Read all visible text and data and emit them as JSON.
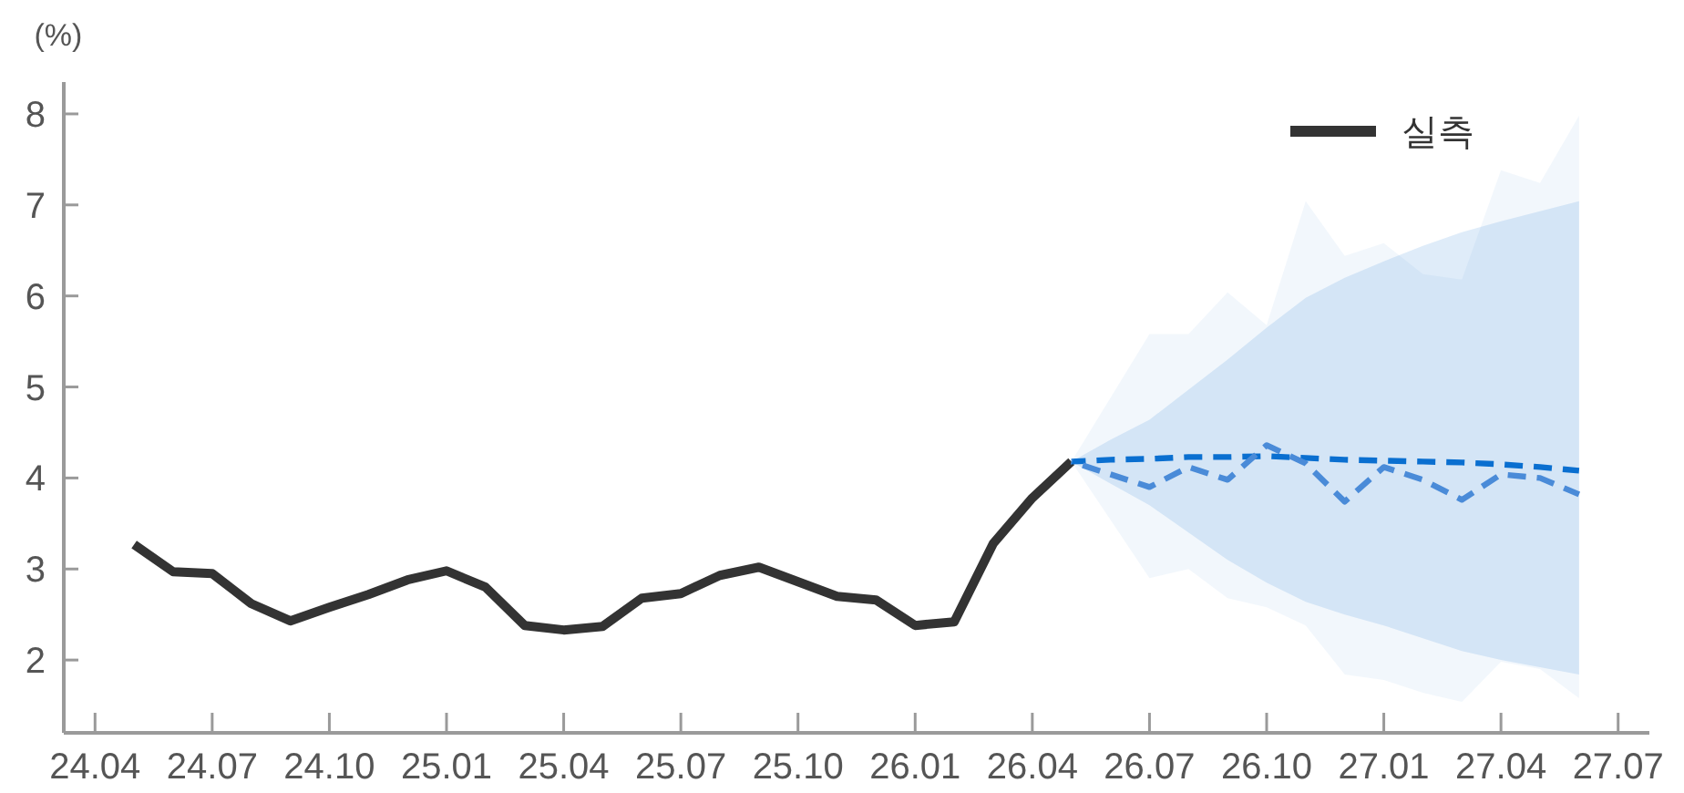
{
  "chart_data": {
    "type": "line",
    "ylabel": "(%)",
    "legend": "top right",
    "ylim": [
      1.2,
      8.35
    ],
    "yticks": [
      2,
      3,
      4,
      5,
      6,
      7,
      8
    ],
    "categories": [
      "24.04",
      null,
      null,
      "24.07",
      null,
      null,
      "24.10",
      null,
      null,
      "25.01",
      null,
      null,
      "25.04",
      null,
      null,
      "25.07",
      null,
      null,
      "25.10",
      null,
      null,
      "26.01",
      null,
      null,
      "26.04",
      null,
      null,
      "26.07",
      null,
      null,
      "26.10",
      null,
      null,
      "27.01",
      null,
      null,
      "27.04",
      null,
      null,
      "27.07"
    ],
    "series": [
      {
        "name": "실측",
        "color": "#333333",
        "line_style": "solid",
        "values": [
          null,
          3.27,
          2.97,
          2.95,
          2.62,
          2.43,
          2.58,
          2.72,
          2.88,
          2.98,
          2.8,
          2.38,
          2.33,
          2.37,
          2.68,
          2.73,
          2.93,
          3.02,
          2.86,
          2.7,
          2.66,
          2.38,
          2.42,
          3.28,
          3.78,
          4.18,
          null,
          null,
          null,
          null,
          null,
          null,
          null,
          null,
          null,
          null,
          null,
          null,
          null,
          null
        ]
      },
      {
        "color": "#0a6fd0",
        "line_style": "dashed",
        "values": [
          null,
          null,
          null,
          null,
          null,
          null,
          null,
          null,
          null,
          null,
          null,
          null,
          null,
          null,
          null,
          null,
          null,
          null,
          null,
          null,
          null,
          null,
          null,
          null,
          null,
          4.18,
          4.2,
          4.21,
          4.23,
          4.23,
          4.24,
          4.22,
          4.2,
          4.19,
          4.18,
          4.17,
          4.15,
          4.12,
          4.08,
          null
        ],
        "lower": [
          null,
          null,
          null,
          null,
          null,
          null,
          null,
          null,
          null,
          null,
          null,
          null,
          null,
          null,
          null,
          null,
          null,
          null,
          null,
          null,
          null,
          null,
          null,
          null,
          null,
          4.18,
          3.94,
          3.7,
          3.4,
          3.1,
          2.85,
          2.64,
          2.5,
          2.38,
          2.24,
          2.1,
          2.0,
          1.92,
          1.84,
          null
        ],
        "upper": [
          null,
          null,
          null,
          null,
          null,
          null,
          null,
          null,
          null,
          null,
          null,
          null,
          null,
          null,
          null,
          null,
          null,
          null,
          null,
          null,
          null,
          null,
          null,
          null,
          null,
          4.18,
          4.42,
          4.64,
          4.97,
          5.3,
          5.65,
          5.98,
          6.2,
          6.38,
          6.55,
          6.7,
          6.82,
          6.93,
          7.04,
          null
        ]
      },
      {
        "color": "#4a8bd8",
        "line_style": "dashed",
        "values": [
          null,
          null,
          null,
          null,
          null,
          null,
          null,
          null,
          null,
          null,
          null,
          null,
          null,
          null,
          null,
          null,
          null,
          null,
          null,
          null,
          null,
          null,
          null,
          null,
          null,
          4.18,
          4.04,
          3.9,
          4.12,
          3.98,
          4.36,
          4.16,
          3.74,
          4.12,
          3.98,
          3.76,
          4.04,
          4.0,
          3.82,
          null
        ],
        "lower": [
          null,
          null,
          null,
          null,
          null,
          null,
          null,
          null,
          null,
          null,
          null,
          null,
          null,
          null,
          null,
          null,
          null,
          null,
          null,
          null,
          null,
          null,
          null,
          null,
          null,
          4.18,
          3.54,
          2.9,
          3.0,
          2.68,
          2.58,
          2.38,
          1.84,
          1.78,
          1.64,
          1.54,
          1.98,
          1.9,
          1.58,
          null
        ],
        "upper": [
          null,
          null,
          null,
          null,
          null,
          null,
          null,
          null,
          null,
          null,
          null,
          null,
          null,
          null,
          null,
          null,
          null,
          null,
          null,
          null,
          null,
          null,
          null,
          null,
          null,
          4.18,
          4.88,
          5.58,
          5.58,
          6.04,
          5.68,
          7.04,
          6.44,
          6.58,
          6.24,
          6.18,
          7.38,
          7.24,
          7.98,
          null
        ]
      }
    ]
  }
}
